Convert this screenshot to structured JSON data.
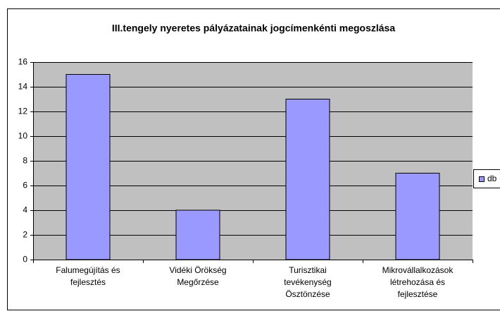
{
  "chart_data": {
    "type": "bar",
    "title": "III.tengely nyeretes pályázatainak jogcímenkénti megoszlása",
    "categories": [
      [
        "Falumegújítás és",
        "fejlesztés"
      ],
      [
        "Vidéki Örökség",
        "Megőrzése"
      ],
      [
        "Turisztikai",
        "tevékenység",
        "Ösztönzése"
      ],
      [
        "Mikrovállalkozások",
        "létrehozása és",
        "fejlesztése"
      ]
    ],
    "series": [
      {
        "name": "db",
        "color": "#9999ff",
        "values": [
          15,
          4,
          13,
          7
        ]
      }
    ],
    "ylim": [
      0,
      16
    ],
    "yticks": [
      0,
      2,
      4,
      6,
      8,
      10,
      12,
      14,
      16
    ],
    "grid": true,
    "legend": "right"
  }
}
